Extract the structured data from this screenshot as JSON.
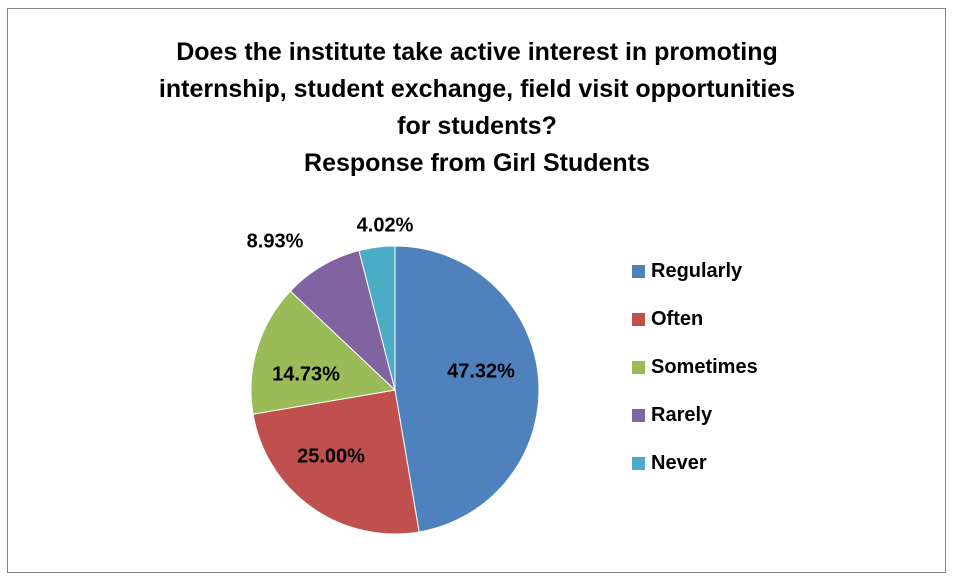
{
  "chart_data": {
    "type": "pie",
    "title_lines": [
      "Does the institute take active interest in promoting",
      "internship, student exchange, field visit opportunities",
      "for students?",
      "Response from Girl Students"
    ],
    "categories": [
      "Regularly",
      "Often",
      "Sometimes",
      "Rarely",
      "Never"
    ],
    "values": [
      47.32,
      25.0,
      14.73,
      8.93,
      4.02
    ],
    "data_labels": [
      "47.32%",
      "25.00%",
      "14.73%",
      "8.93%",
      "4.02%"
    ],
    "colors": [
      "#4F81BD",
      "#C0504D",
      "#9BBB59",
      "#8064A2",
      "#4BACC6"
    ],
    "legend_position": "right"
  }
}
